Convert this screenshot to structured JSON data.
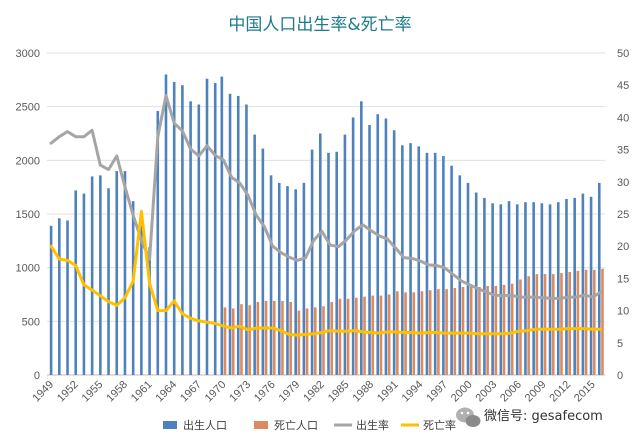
{
  "chart_data": {
    "type": "bar",
    "title": "中国人口出生率&死亡率",
    "x": [
      1949,
      1950,
      1951,
      1952,
      1953,
      1954,
      1955,
      1956,
      1957,
      1958,
      1959,
      1960,
      1961,
      1962,
      1963,
      1964,
      1965,
      1966,
      1967,
      1968,
      1969,
      1970,
      1971,
      1972,
      1973,
      1974,
      1975,
      1976,
      1977,
      1978,
      1979,
      1980,
      1981,
      1982,
      1983,
      1984,
      1985,
      1986,
      1987,
      1988,
      1989,
      1990,
      1991,
      1992,
      1993,
      1994,
      1995,
      1996,
      1997,
      1998,
      1999,
      2000,
      2001,
      2002,
      2003,
      2004,
      2005,
      2006,
      2007,
      2008,
      2009,
      2010,
      2011,
      2012,
      2013,
      2014,
      2015,
      2016
    ],
    "x_tick_labels": [
      "1949",
      "1952",
      "1955",
      "1958",
      "1961",
      "1964",
      "1967",
      "1970",
      "1973",
      "1976",
      "1979",
      "1982",
      "1985",
      "1988",
      "1991",
      "1994",
      "1997",
      "2000",
      "2003",
      "2006",
      "2009",
      "2012",
      "2015"
    ],
    "y_left": {
      "min": 0,
      "max": 3000,
      "ticks": [
        "0",
        "500",
        "1000",
        "1500",
        "2000",
        "2500",
        "3000"
      ]
    },
    "y_right": {
      "min": 0,
      "max": 50,
      "ticks": [
        "0",
        "5",
        "10",
        "15",
        "20",
        "25",
        "30",
        "35",
        "40",
        "45",
        "50"
      ]
    },
    "series": [
      {
        "name": "出生人口",
        "kind": "bar",
        "axis": "left",
        "color": "#4f81bd",
        "values": [
          1390,
          1460,
          1440,
          1720,
          1690,
          1850,
          1860,
          1740,
          1900,
          1900,
          1620,
          1390,
          1190,
          2460,
          2800,
          2730,
          2700,
          2550,
          2520,
          2760,
          2720,
          2780,
          2620,
          2600,
          2520,
          2240,
          2110,
          1860,
          1790,
          1760,
          1730,
          1790,
          2100,
          2250,
          2070,
          2080,
          2240,
          2400,
          2550,
          2330,
          2430,
          2390,
          2280,
          2140,
          2160,
          2130,
          2070,
          2070,
          2040,
          1950,
          1860,
          1790,
          1700,
          1650,
          1600,
          1590,
          1620,
          1590,
          1610,
          1610,
          1600,
          1590,
          1610,
          1640,
          1650,
          1690,
          1660,
          1790
        ]
      },
      {
        "name": "死亡人口",
        "kind": "bar",
        "axis": "left",
        "color": "#dd8a5f",
        "values": [
          null,
          null,
          null,
          null,
          null,
          null,
          null,
          null,
          null,
          null,
          null,
          null,
          null,
          null,
          null,
          null,
          null,
          null,
          null,
          null,
          null,
          630,
          620,
          660,
          650,
          680,
          690,
          690,
          690,
          680,
          600,
          620,
          630,
          640,
          680,
          710,
          710,
          720,
          730,
          740,
          740,
          750,
          780,
          770,
          770,
          780,
          790,
          800,
          800,
          810,
          820,
          820,
          820,
          830,
          830,
          840,
          850,
          890,
          920,
          940,
          940,
          940,
          950,
          960,
          970,
          980,
          980,
          990
        ]
      },
      {
        "name": "出生率",
        "kind": "line",
        "axis": "right",
        "color": "#a5a5a5",
        "values": [
          36.0,
          37.0,
          37.8,
          37.0,
          37.0,
          38.0,
          32.6,
          31.9,
          34.0,
          29.2,
          24.8,
          20.9,
          18.0,
          37.0,
          43.4,
          39.1,
          37.9,
          35.1,
          34.0,
          35.6,
          34.1,
          33.4,
          30.7,
          29.8,
          27.9,
          24.8,
          23.0,
          20.0,
          19.0,
          18.3,
          17.8,
          18.2,
          20.9,
          22.3,
          20.2,
          19.9,
          21.0,
          22.4,
          23.3,
          22.4,
          21.6,
          21.1,
          19.7,
          18.2,
          18.1,
          17.7,
          17.1,
          17.0,
          16.6,
          15.6,
          14.6,
          14.0,
          13.4,
          12.9,
          12.4,
          12.3,
          12.4,
          12.1,
          12.1,
          12.1,
          12.0,
          11.9,
          11.9,
          12.1,
          12.1,
          12.4,
          12.1,
          12.9
        ]
      },
      {
        "name": "死亡率",
        "kind": "line",
        "axis": "right",
        "color": "#ffc000",
        "values": [
          20.0,
          18.0,
          17.8,
          17.0,
          14.0,
          13.2,
          12.3,
          11.4,
          10.8,
          12.0,
          14.6,
          25.4,
          14.2,
          10.0,
          10.0,
          11.5,
          9.5,
          8.8,
          8.4,
          8.2,
          8.0,
          7.6,
          7.3,
          7.6,
          7.0,
          7.3,
          7.3,
          7.3,
          6.9,
          6.3,
          6.2,
          6.3,
          6.4,
          6.6,
          6.9,
          6.8,
          6.8,
          6.9,
          6.7,
          6.6,
          6.5,
          6.7,
          6.7,
          6.6,
          6.6,
          6.5,
          6.6,
          6.6,
          6.5,
          6.5,
          6.5,
          6.5,
          6.4,
          6.4,
          6.4,
          6.4,
          6.5,
          6.8,
          6.9,
          7.1,
          7.1,
          7.1,
          7.1,
          7.2,
          7.2,
          7.2,
          7.1,
          7.1
        ]
      }
    ],
    "legend_position": "bottom-center",
    "grid": true
  },
  "watermark": {
    "icon": "wechat-icon",
    "text": "微信号: gesafecom"
  }
}
